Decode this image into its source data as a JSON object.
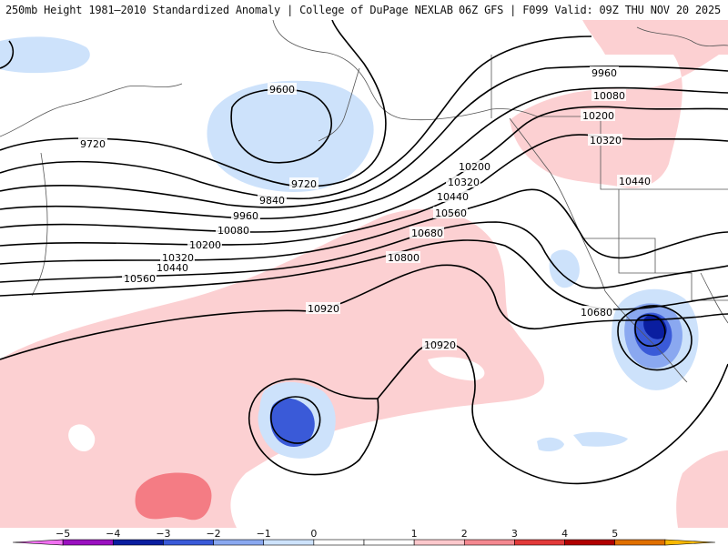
{
  "header": {
    "title_left": "250mb Height 1981–2010 Standardized Anomaly | College of DuPage NEXLAB",
    "title_right": "06Z GFS | F099 Valid: 09Z THU NOV 20 2025"
  },
  "contour_labels": {
    "c9600": "9600",
    "c9720a": "9720",
    "c9720b": "9720",
    "c9840": "9840",
    "c9960a": "9960",
    "c9960b": "9960",
    "c10080a": "10080",
    "c10080b": "10080",
    "c10200a": "10200",
    "c10200b": "10200",
    "c10200c": "10200",
    "c10320a": "10320",
    "c10320b": "10320",
    "c10320c": "10320",
    "c10440a": "10440",
    "c10440b": "10440",
    "c10440c": "10440",
    "c10560a": "10560",
    "c10560b": "10560",
    "c10680a": "10680",
    "c10680b": "10680",
    "c10800": "10800",
    "c10920a": "10920",
    "c10920b": "10920"
  },
  "legend": {
    "ticks": [
      "−5",
      "−4",
      "−3",
      "−2",
      "−1",
      "0",
      "1",
      "2",
      "3",
      "4",
      "5"
    ],
    "colors": [
      "#f070f0",
      "#9a10c0",
      "#0a1ea0",
      "#3a5ad8",
      "#8aa8f0",
      "#cde2fb",
      "#ffffff",
      "#ffffff",
      "#fcc8cc",
      "#f48890",
      "#e23a3a",
      "#b00000",
      "#e07000",
      "#f8b800"
    ]
  }
}
